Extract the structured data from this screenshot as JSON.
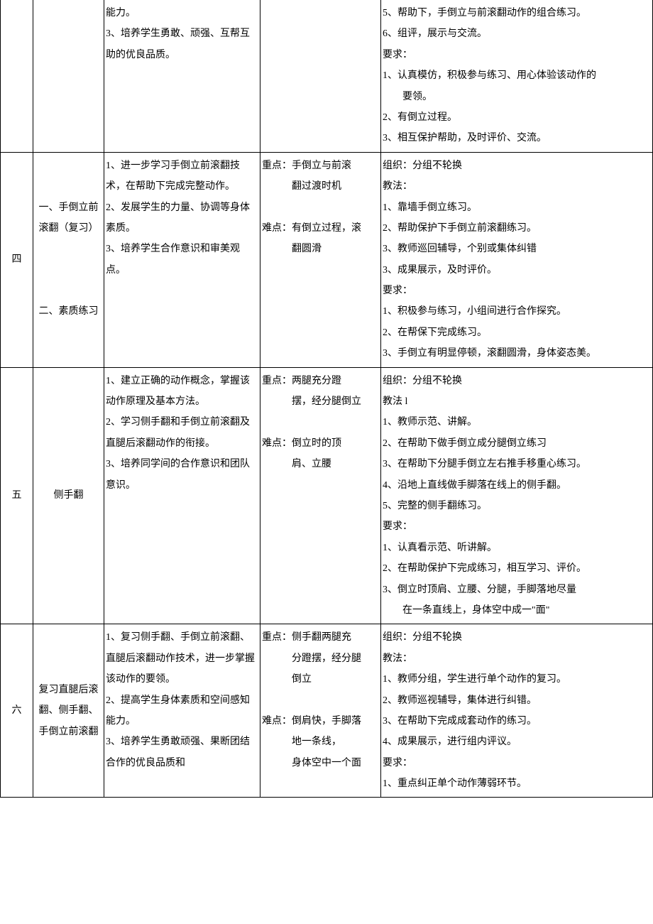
{
  "rows": [
    {
      "c1": "",
      "c2": "",
      "c3": [
        "能力。",
        "3、培养学生勇敢、顽强、互帮互助的优良品质。"
      ],
      "c4": [
        ""
      ],
      "c5": [
        "5、帮助下，手倒立与前滚翻动作的组合练习。",
        "6、组评，展示与交流。",
        "要求：",
        "1、认真模仿，积极参与练习、用心体验该动作的",
        "　　要领。",
        "2、有倒立过程。",
        "3、相互保护帮助，及时评价、交流。"
      ]
    },
    {
      "c1": "四",
      "c2": "一、手倒立前滚翻（复习）\n\n\n\n二、素质练习",
      "c3": [
        "1、进一步学习手倒立前滚翻技术，在帮助下完成完整动作。",
        "2、发展学生的力量、协调等身体素质。",
        "3、培养学生合作意识和审美观点。"
      ],
      "c4": [
        "重点：手倒立与前滚",
        "　　　翻过渡时机",
        "",
        "难点：有倒立过程，滚",
        "　　　翻圆滑"
      ],
      "c5": [
        "组织：分组不轮换",
        "教法：",
        "1、靠墙手倒立练习。",
        "2、帮助保护下手倒立前滚翻练习。",
        "3、教师巡回辅导，个别或集体纠错",
        "3、成果展示，及时评价。",
        "要求：",
        "1、积极参与练习，小组间进行合作探究。",
        "2、在帮保下完成练习。",
        "3、手倒立有明显停顿，滚翻圆滑，身体姿态美。"
      ]
    },
    {
      "c1": "五",
      "c2": "侧手翻",
      "c3": [
        "1、建立正确的动作概念，掌握该动作原理及基本方法。",
        "2、学习侧手翻和手倒立前滚翻及直腿后滚翻动作的衔接。",
        "3、培养同学间的合作意识和团队意识。"
      ],
      "c4": [
        "重点：两腿充分蹬",
        "　　　摆，经分腿倒立",
        "",
        "难点：倒立时的顶",
        "　　　肩、立腰"
      ],
      "c5": [
        "组织：分组不轮换",
        "教法 l",
        "1、教师示范、讲解。",
        "2、在帮助下做手倒立成分腿倒立练习",
        "3、在帮助下分腿手倒立左右推手移重心练习。",
        "4、沿地上直线做手脚落在线上的侧手翻。",
        "5、完整的侧手翻练习。",
        "要求：",
        "1、认真看示范、听讲解。",
        "2、在帮助保护下完成练习，相互学习、评价。",
        "3、倒立时顶肩、立腰、分腿，手脚落地尽量",
        "　　在一条直线上，身体空中成一\"面\""
      ]
    },
    {
      "c1": "六",
      "c2": "复习直腿后滚翻、侧手翻、手倒立前滚翻",
      "c3": [
        "1、复习侧手翻、手倒立前滚翻、直腿后滚翻动作技术，进一步掌握该动作的要领。",
        "2、提高学生身体素质和空间感知能力。",
        "3、培养学生勇敢顽强、果断团结合作的优良品质和"
      ],
      "c4": [
        "重点：侧手翻两腿充",
        "　　　分蹬摆，经分腿",
        "　　　倒立",
        "",
        "难点：倒肩快，手脚落",
        "　　　地一条线，",
        "　　　身体空中一个面"
      ],
      "c5": [
        "组织：分组不轮换",
        "教法：",
        "1、教师分组，学生进行单个动作的复习。",
        "2、教师巡视辅导，集体进行纠错。",
        "3、在帮助下完成成套动作的练习。",
        "4、成果展示，进行组内评议。",
        "要求：",
        "1、重点纠正单个动作薄弱环节。"
      ]
    }
  ]
}
